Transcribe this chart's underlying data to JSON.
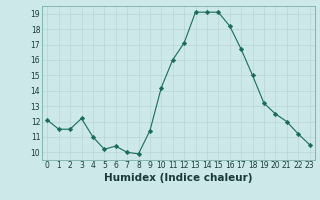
{
  "x": [
    0,
    1,
    2,
    3,
    4,
    5,
    6,
    7,
    8,
    9,
    10,
    11,
    12,
    13,
    14,
    15,
    16,
    17,
    18,
    19,
    20,
    21,
    22,
    23
  ],
  "y": [
    12.1,
    11.5,
    11.5,
    12.2,
    11.0,
    10.2,
    10.4,
    10.0,
    9.9,
    11.4,
    14.2,
    16.0,
    17.1,
    19.1,
    19.1,
    19.1,
    18.2,
    16.7,
    15.0,
    13.2,
    12.5,
    12.0,
    11.2,
    10.5
  ],
  "xlabel": "Humidex (Indice chaleur)",
  "line_color": "#1a6b5a",
  "marker": "D",
  "marker_size": 2.2,
  "bg_color": "#cce8e8",
  "grid_color": "#b8d4d4",
  "xlim": [
    -0.5,
    23.5
  ],
  "ylim": [
    9.5,
    19.5
  ],
  "yticks": [
    10,
    11,
    12,
    13,
    14,
    15,
    16,
    17,
    18,
    19
  ],
  "xticks": [
    0,
    1,
    2,
    3,
    4,
    5,
    6,
    7,
    8,
    9,
    10,
    11,
    12,
    13,
    14,
    15,
    16,
    17,
    18,
    19,
    20,
    21,
    22,
    23
  ],
  "tick_fontsize": 5.5,
  "xlabel_fontsize": 7.5
}
